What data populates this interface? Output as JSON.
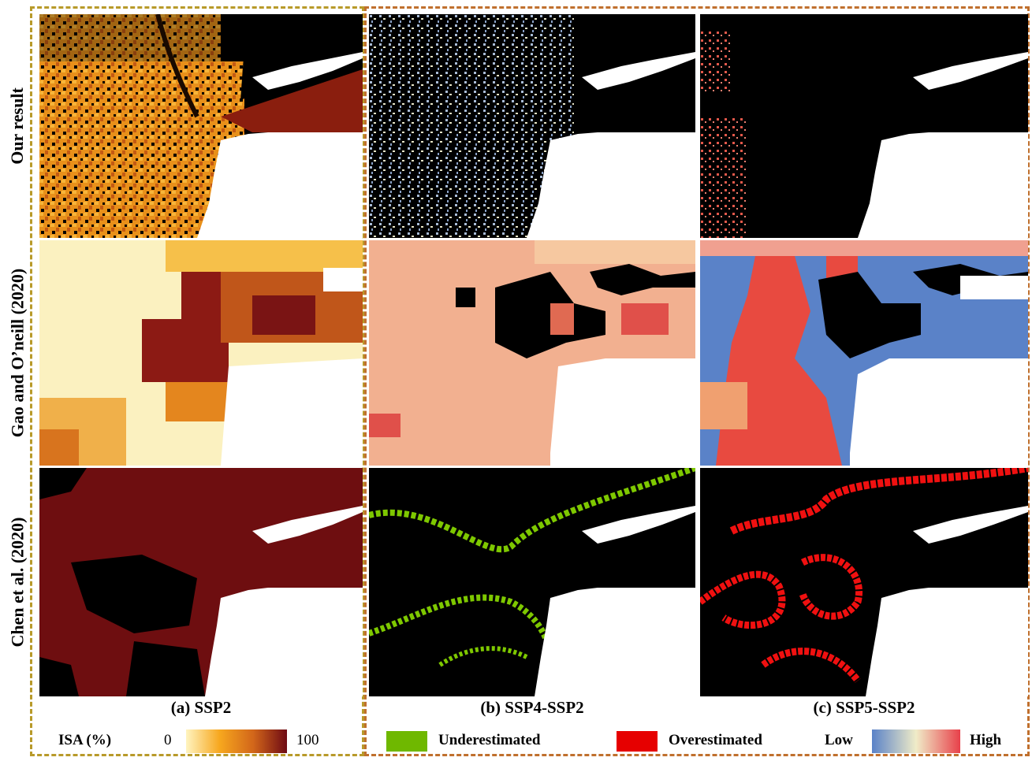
{
  "row_labels": [
    "Our result",
    "Gao and O’neill (2020)",
    "Chen et al. (2020)"
  ],
  "column_titles": [
    "(a) SSP2",
    "(b) SSP4-SSP2",
    "(c) SSP5-SSP2"
  ],
  "legend": {
    "isa_label": "ISA (%)",
    "isa_min": "0",
    "isa_max": "100",
    "underestimated": "Underestimated",
    "overestimated": "Overestimated",
    "low": "Low",
    "high": "High"
  },
  "colors": {
    "underestimated": "#6fb800",
    "overestimated": "#e60000",
    "isa_ramp": [
      "#fff4c0",
      "#f7a71e",
      "#d2661a",
      "#6e0a14"
    ],
    "diverging_ramp": [
      "#5a82c8",
      "#f0ecc8",
      "#e8404a"
    ]
  }
}
